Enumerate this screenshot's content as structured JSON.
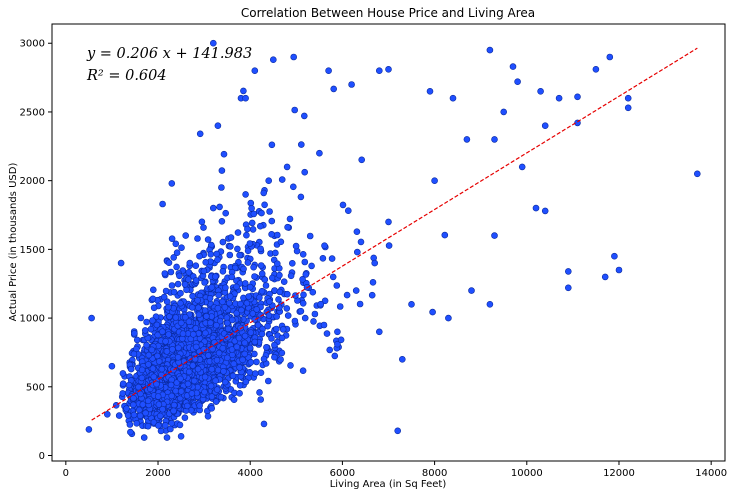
{
  "chart_data": {
    "type": "scatter",
    "title": "Correlation Between House Price and Living Area",
    "xlabel": "Living Area (in Sq Feet)",
    "ylabel": "Actual Price (in thousands USD)",
    "xlim": [
      -300,
      14300
    ],
    "ylim": [
      -40,
      3140
    ],
    "xticks": [
      0,
      2000,
      4000,
      6000,
      8000,
      10000,
      12000,
      14000
    ],
    "yticks": [
      0,
      500,
      1000,
      1500,
      2000,
      2500,
      3000
    ],
    "grid": false,
    "legend": "none",
    "marker_fill": "#1f4fff",
    "marker_edge": "#0a2aa0",
    "fit_line_color": "#e60000",
    "fit_line": {
      "slope": 0.206,
      "intercept": 141.983,
      "x_range": [
        560,
        13700
      ]
    },
    "annotations": {
      "equation": "y = 0.206 x + 141.983",
      "r2": "R² = 0.604"
    },
    "points": [
      [
        560,
        1000
      ],
      [
        500,
        190
      ],
      [
        3200,
        3000
      ],
      [
        4500,
        2880
      ],
      [
        5700,
        2800
      ],
      [
        6800,
        2800
      ],
      [
        7000,
        2810
      ],
      [
        9200,
        2950
      ],
      [
        9700,
        2830
      ],
      [
        11500,
        2810
      ],
      [
        11800,
        2900
      ],
      [
        12200,
        2600
      ],
      [
        12200,
        2530
      ],
      [
        13700,
        2050
      ],
      [
        10400,
        1780
      ],
      [
        10200,
        1800
      ],
      [
        10900,
        1340
      ],
      [
        10900,
        1220
      ],
      [
        11700,
        1300
      ],
      [
        11900,
        1450
      ],
      [
        12000,
        1350
      ],
      [
        11100,
        2420
      ],
      [
        11100,
        2610
      ],
      [
        10700,
        2600
      ],
      [
        10400,
        2400
      ],
      [
        9500,
        2500
      ],
      [
        9900,
        2100
      ],
      [
        9300,
        1600
      ],
      [
        8800,
        1200
      ],
      [
        9200,
        1100
      ],
      [
        8300,
        1000
      ],
      [
        7200,
        180
      ],
      [
        4300,
        230
      ],
      [
        2100,
        1830
      ],
      [
        2300,
        1980
      ],
      [
        1200,
        1400
      ],
      [
        3300,
        2400
      ],
      [
        3800,
        2600
      ],
      [
        3900,
        2600
      ],
      [
        4100,
        2800
      ],
      [
        6200,
        2700
      ],
      [
        7900,
        2650
      ],
      [
        8400,
        2600
      ],
      [
        9800,
        2720
      ],
      [
        10300,
        2650
      ],
      [
        8700,
        2300
      ],
      [
        9300,
        2300
      ],
      [
        8000,
        2000
      ],
      [
        7000,
        1700
      ],
      [
        6700,
        1400
      ],
      [
        5800,
        1300
      ],
      [
        7500,
        1100
      ],
      [
        6800,
        900
      ],
      [
        7300,
        700
      ],
      [
        6300,
        1200
      ],
      [
        5500,
        2200
      ],
      [
        4800,
        2100
      ],
      [
        4400,
        2000
      ],
      [
        3900,
        1900
      ],
      [
        3200,
        1800
      ],
      [
        2600,
        1600
      ],
      [
        2900,
        1450
      ],
      [
        3600,
        1300
      ],
      [
        4200,
        1150
      ],
      [
        5100,
        1050
      ],
      [
        5600,
        950
      ],
      [
        2500,
        140
      ],
      [
        1700,
        130
      ],
      [
        1400,
        170
      ],
      [
        900,
        300
      ],
      [
        1000,
        650
      ]
    ]
  }
}
